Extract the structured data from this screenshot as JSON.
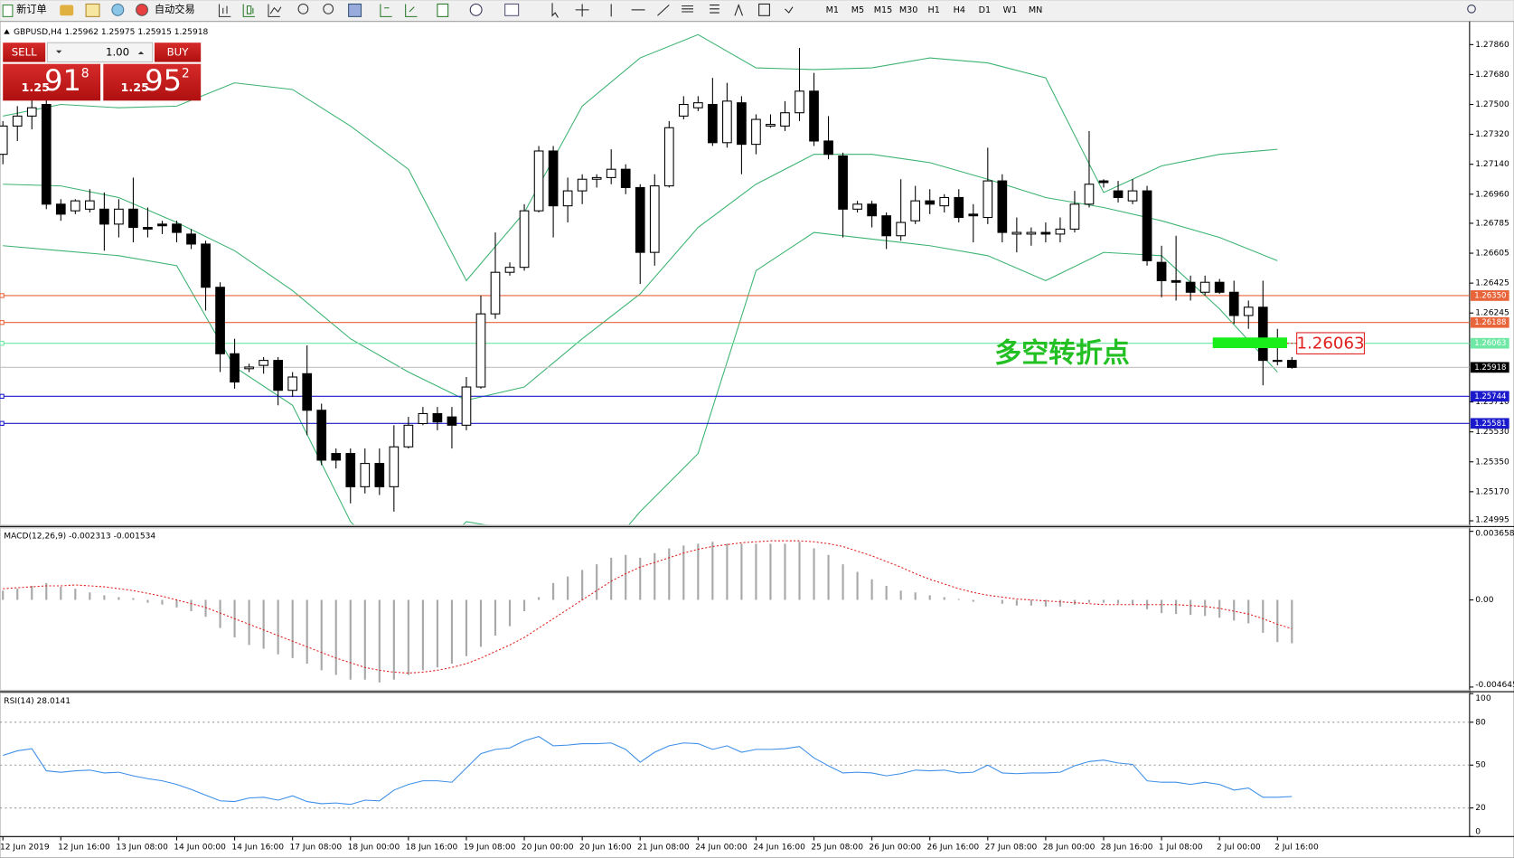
{
  "toolbar": {
    "new_order": "新订单",
    "auto_trading": "自动交易",
    "timeframes": [
      "M1",
      "M5",
      "M15",
      "M30",
      "H1",
      "H4",
      "D1",
      "W1",
      "MN"
    ]
  },
  "trade_panel": {
    "sell": "SELL",
    "buy": "BUY",
    "lot": "1.00",
    "sell_price": {
      "big": "1.25",
      "pips": "91",
      "point": "8"
    },
    "buy_price": {
      "big": "1.25",
      "pips": "95",
      "point": "2"
    }
  },
  "chart_data": [
    {
      "type": "candlestick",
      "label": "GBPUSD,H4  1.25962 1.25975 1.25915 1.25918",
      "categories": [
        "12 Jun 2019",
        null,
        null,
        null,
        "12 Jun 16:00",
        null,
        null,
        null,
        "13 Jun 08:00",
        null,
        null,
        null,
        "14 Jun 00:00",
        null,
        null,
        null,
        "14 Jun 16:00",
        null,
        null,
        null,
        "17 Jun 08:00",
        null,
        null,
        null,
        "18 Jun 00:00",
        null,
        null,
        null,
        "18 Jun 16:00",
        null,
        null,
        null,
        "19 Jun 08:00",
        null,
        null,
        null,
        "20 Jun 00:00",
        null,
        null,
        null,
        "20 Jun 16:00",
        null,
        null,
        null,
        "21 Jun 08:00",
        null,
        null,
        null,
        "24 Jun 00:00",
        null,
        null,
        null,
        "24 Jun 16:00",
        null,
        null,
        null,
        "25 Jun 08:00",
        null,
        null,
        null,
        "26 Jun 00:00",
        null,
        null,
        null,
        "26 Jun 16:00",
        null,
        null,
        null,
        "27 Jun 08:00",
        null,
        null,
        null,
        "28 Jun 00:00",
        null,
        null,
        null,
        "28 Jun 16:00",
        null,
        null,
        null,
        "1 Jul 08:00",
        null,
        null,
        null,
        "2 Jul 00:00",
        null,
        null,
        null,
        "2 Jul 16:00",
        null
      ],
      "ohlc": [
        [
          1.272,
          1.274,
          1.2714,
          1.2737
        ],
        [
          1.2737,
          1.2749,
          1.2728,
          1.2743
        ],
        [
          1.2743,
          1.2755,
          1.2735,
          1.2748
        ],
        [
          1.275,
          1.2755,
          1.2687,
          1.269
        ],
        [
          1.269,
          1.2693,
          1.268,
          1.2684
        ],
        [
          1.2686,
          1.2693,
          1.2684,
          1.2692
        ],
        [
          1.2687,
          1.2699,
          1.2685,
          1.2692
        ],
        [
          1.2687,
          1.2697,
          1.2662,
          1.2678
        ],
        [
          1.2678,
          1.2693,
          1.267,
          1.2687
        ],
        [
          1.2687,
          1.2706,
          1.2667,
          1.2676
        ],
        [
          1.2676,
          1.2688,
          1.267,
          1.2675
        ],
        [
          1.2678,
          1.268,
          1.2672,
          1.2677
        ],
        [
          1.2678,
          1.268,
          1.2667,
          1.2673
        ],
        [
          1.2672,
          1.2675,
          1.2663,
          1.2666
        ],
        [
          1.2666,
          1.2668,
          1.2626,
          1.264
        ],
        [
          1.264,
          1.2643,
          1.2589,
          1.26
        ],
        [
          1.26,
          1.2609,
          1.2579,
          1.2583
        ],
        [
          1.2591,
          1.2594,
          1.2589,
          1.2592
        ],
        [
          1.2593,
          1.2598,
          1.2588,
          1.2596
        ],
        [
          1.2596,
          1.2598,
          1.2569,
          1.2578
        ],
        [
          1.2578,
          1.2589,
          1.2574,
          1.2586
        ],
        [
          1.2588,
          1.2605,
          1.2551,
          1.2566
        ],
        [
          1.2566,
          1.257,
          1.2533,
          1.2536
        ],
        [
          1.254,
          1.2543,
          1.2531,
          1.2536
        ],
        [
          1.254,
          1.2543,
          1.251,
          1.252
        ],
        [
          1.252,
          1.2543,
          1.2516,
          1.2534
        ],
        [
          1.2534,
          1.2543,
          1.2515,
          1.252
        ],
        [
          1.252,
          1.2557,
          1.2505,
          1.2544
        ],
        [
          1.2544,
          1.2562,
          1.2543,
          1.2557
        ],
        [
          1.2558,
          1.2568,
          1.2557,
          1.2564
        ],
        [
          1.2564,
          1.2568,
          1.2554,
          1.2559
        ],
        [
          1.2562,
          1.2568,
          1.2543,
          1.2557
        ],
        [
          1.2557,
          1.2586,
          1.2554,
          1.258
        ],
        [
          1.258,
          1.2635,
          1.2579,
          1.2624
        ],
        [
          1.2624,
          1.2673,
          1.2621,
          1.2649
        ],
        [
          1.2649,
          1.2655,
          1.2647,
          1.2652
        ],
        [
          1.2652,
          1.269,
          1.265,
          1.2686
        ],
        [
          1.2686,
          1.2725,
          1.2685,
          1.2722
        ],
        [
          1.2722,
          1.2725,
          1.267,
          1.2689
        ],
        [
          1.2689,
          1.2706,
          1.2679,
          1.2698
        ],
        [
          1.2698,
          1.2708,
          1.269,
          1.2705
        ],
        [
          1.2705,
          1.2708,
          1.27,
          1.2706
        ],
        [
          1.2706,
          1.2723,
          1.2702,
          1.2711
        ],
        [
          1.2711,
          1.2714,
          1.2696,
          1.27
        ],
        [
          1.27,
          1.2702,
          1.2642,
          1.2661
        ],
        [
          1.2661,
          1.2708,
          1.2653,
          1.2701
        ],
        [
          1.2701,
          1.274,
          1.27,
          1.2736
        ],
        [
          1.2743,
          1.2755,
          1.2741,
          1.275
        ],
        [
          1.2748,
          1.2755,
          1.2746,
          1.2751
        ],
        [
          1.275,
          1.2766,
          1.2725,
          1.2727
        ],
        [
          1.2727,
          1.2763,
          1.2724,
          1.2752
        ],
        [
          1.2751,
          1.2755,
          1.2708,
          1.2726
        ],
        [
          1.2726,
          1.2744,
          1.272,
          1.2741
        ],
        [
          1.2737,
          1.2744,
          1.2736,
          1.2738
        ],
        [
          1.2737,
          1.2752,
          1.2734,
          1.2745
        ],
        [
          1.2745,
          1.2784,
          1.274,
          1.2758
        ],
        [
          1.2758,
          1.2769,
          1.2725,
          1.2728
        ],
        [
          1.2728,
          1.2743,
          1.2717,
          1.272
        ],
        [
          1.2719,
          1.2721,
          1.267,
          1.2687
        ],
        [
          1.2687,
          1.2692,
          1.2685,
          1.269
        ],
        [
          1.269,
          1.2692,
          1.2676,
          1.2683
        ],
        [
          1.2683,
          1.2685,
          1.2663,
          1.2671
        ],
        [
          1.2671,
          1.2705,
          1.2668,
          1.2679
        ],
        [
          1.268,
          1.2701,
          1.2678,
          1.2692
        ],
        [
          1.2692,
          1.2699,
          1.2684,
          1.269
        ],
        [
          1.2689,
          1.2696,
          1.2685,
          1.2694
        ],
        [
          1.2694,
          1.2699,
          1.2679,
          1.2682
        ],
        [
          1.2684,
          1.269,
          1.2667,
          1.2683
        ],
        [
          1.2682,
          1.2724,
          1.2678,
          1.2704
        ],
        [
          1.2704,
          1.2708,
          1.2667,
          1.2673
        ],
        [
          1.2672,
          1.2682,
          1.2661,
          1.2673
        ],
        [
          1.2672,
          1.2676,
          1.2665,
          1.2673
        ],
        [
          1.2673,
          1.2679,
          1.2667,
          1.2672
        ],
        [
          1.2672,
          1.2682,
          1.2667,
          1.2675
        ],
        [
          1.2675,
          1.2698,
          1.2673,
          1.269
        ],
        [
          1.269,
          1.2734,
          1.2688,
          1.2702
        ],
        [
          1.2704,
          1.2705,
          1.27,
          1.2703
        ],
        [
          1.2698,
          1.2704,
          1.2691,
          1.2694
        ],
        [
          1.2692,
          1.2705,
          1.269,
          1.2698
        ],
        [
          1.2698,
          1.2701,
          1.2653,
          1.2656
        ],
        [
          1.2655,
          1.2665,
          1.2634,
          1.2644
        ],
        [
          1.2644,
          1.2671,
          1.2632,
          1.2643
        ],
        [
          1.2643,
          1.2647,
          1.2632,
          1.2637
        ],
        [
          1.2637,
          1.2647,
          1.2635,
          1.2643
        ],
        [
          1.2643,
          1.2645,
          1.2636,
          1.2637
        ],
        [
          1.2637,
          1.2644,
          1.2618,
          1.2623
        ],
        [
          1.2623,
          1.2632,
          1.2615,
          1.2628
        ],
        [
          1.2628,
          1.2644,
          1.2581,
          1.2596
        ],
        [
          1.2596,
          1.2615,
          1.2593,
          1.2596
        ],
        [
          1.2596,
          1.2598,
          1.2591,
          1.25918
        ]
      ],
      "band_x": [
        0,
        4,
        8,
        12,
        16,
        20,
        24,
        28,
        32,
        36,
        40,
        44,
        48,
        52,
        56,
        60,
        64,
        68,
        72,
        76,
        80,
        84,
        88
      ],
      "bands": [
        {
          "color": "#3cb371",
          "values": [
            1.2743,
            1.275,
            1.2748,
            1.2749,
            1.2763,
            1.2759,
            1.2737,
            1.2711,
            1.2644,
            1.2685,
            1.2749,
            1.2778,
            1.2792,
            1.2772,
            1.2771,
            1.2772,
            1.2778,
            1.2775,
            1.2766,
            1.2697,
            1.2713,
            1.272,
            1.2723
          ]
        },
        {
          "color": "#3cb371",
          "values": [
            1.2702,
            1.2701,
            1.2694,
            1.2679,
            1.2662,
            1.2638,
            1.2609,
            1.2589,
            1.2572,
            1.258,
            1.2609,
            1.2636,
            1.2676,
            1.2702,
            1.272,
            1.272,
            1.2715,
            1.2705,
            1.2694,
            1.2688,
            1.268,
            1.267,
            1.2656
          ]
        },
        {
          "color": "#3cb371",
          "values": [
            1.2665,
            1.2662,
            1.2659,
            1.2653,
            1.2592,
            1.2569,
            1.2499,
            1.2464,
            1.2499,
            1.2493,
            1.2464,
            1.2505,
            1.254,
            1.265,
            1.2673,
            1.2669,
            1.2665,
            1.2659,
            1.2644,
            1.2661,
            1.2659,
            1.2627,
            1.2589
          ]
        }
      ],
      "ylim": [
        1.24972,
        1.27982
      ],
      "yticks": [
        {
          "value": 1.2786,
          "label": "1.27860"
        },
        {
          "value": 1.2768,
          "label": "1.27680"
        },
        {
          "value": 1.275,
          "label": "1.27500"
        },
        {
          "value": 1.2732,
          "label": "1.27320"
        },
        {
          "value": 1.2714,
          "label": "1.27140"
        },
        {
          "value": 1.2696,
          "label": "1.26960"
        },
        1.26785,
        1.26605,
        1.26425,
        1.26245,
        {
          "value": 1.2571,
          "label": "1.25710"
        },
        {
          "value": 1.2553,
          "label": "1.25530"
        },
        {
          "value": 1.2535,
          "label": "1.25350"
        },
        {
          "value": 1.2517,
          "label": "1.25170"
        },
        1.24995
      ],
      "hlines": [
        {
          "value": 1.2635,
          "label": "1.26350",
          "color": "#e8643a"
        },
        {
          "value": 1.26188,
          "label": "1.26188",
          "color": "#e8643a"
        },
        {
          "value": 1.26063,
          "label": "1.26063",
          "color": "#6ee8a4"
        },
        {
          "value": 1.25744,
          "label": "1.25744",
          "color": "#1a1acc"
        },
        {
          "value": 1.25581,
          "label": "1.25581",
          "color": "#1a1acc"
        }
      ],
      "bid": {
        "value": 1.25918,
        "label": "1.25918"
      },
      "annotation": {
        "text": "多空转折点",
        "label": "1.26063"
      }
    },
    {
      "type": "macd",
      "label": "MACD(12,26,9) -0.002313 -0.001534",
      "histogram": [
        0.0005,
        0.0006,
        0.00075,
        0.0009,
        0.0007,
        0.0006,
        0.0004,
        0.00025,
        0.00015,
        0.0001,
        -0.00015,
        -0.00025,
        -0.0004,
        -0.0006,
        -0.0009,
        -0.0015,
        -0.002,
        -0.0024,
        -0.0026,
        -0.0029,
        -0.0031,
        -0.0034,
        -0.00375,
        -0.004,
        -0.00425,
        -0.00425,
        -0.0044,
        -0.00425,
        -0.004,
        -0.00375,
        -0.0036,
        -0.0034,
        -0.003,
        -0.0025,
        -0.0019,
        -0.0014,
        -0.0006,
        0.00015,
        0.0009,
        0.00125,
        0.0016,
        0.0019,
        0.00225,
        0.0024,
        0.00225,
        0.0025,
        0.00275,
        0.0029,
        0.003,
        0.0031,
        0.003,
        0.003,
        0.003,
        0.003,
        0.003,
        0.0031,
        0.00275,
        0.0024,
        0.0019,
        0.0015,
        0.0011,
        0.00075,
        0.0005,
        0.0004,
        0.00025,
        0.00015,
        5e-05,
        -0.0001,
        0,
        -0.0002,
        -0.0003,
        -0.0003,
        -0.00035,
        -0.00035,
        -0.00025,
        -0.00015,
        -0.00015,
        -0.0002,
        -0.00025,
        -0.0005,
        -0.0007,
        -0.00075,
        -0.0008,
        -0.00085,
        -0.00095,
        -0.0011,
        -0.00125,
        -0.00175,
        -0.00225,
        -0.002313
      ],
      "signal": [
        0.0006,
        0.00065,
        0.0007,
        0.00075,
        0.00075,
        0.0008,
        0.00075,
        0.0007,
        0.0006,
        0.0005,
        0.00035,
        0.0002,
        0,
        -0.0002,
        -0.0004,
        -0.0007,
        -0.001,
        -0.0013,
        -0.0016,
        -0.0019,
        -0.0022,
        -0.0025,
        -0.0028,
        -0.0031,
        -0.00335,
        -0.0036,
        -0.00375,
        -0.00385,
        -0.0039,
        -0.00385,
        -0.00375,
        -0.0036,
        -0.0034,
        -0.0031,
        -0.00275,
        -0.0024,
        -0.002,
        -0.0015,
        -0.001,
        -0.0005,
        0,
        0.0005,
        0.001,
        0.0014,
        0.00175,
        0.002,
        0.00225,
        0.0025,
        0.0027,
        0.00285,
        0.00295,
        0.00305,
        0.0031,
        0.00315,
        0.00315,
        0.00315,
        0.0031,
        0.003,
        0.00285,
        0.0026,
        0.00235,
        0.00205,
        0.00175,
        0.0014,
        0.0011,
        0.00085,
        0.0006,
        0.0004,
        0.00025,
        0.00015,
        5e-05,
        0,
        -5e-05,
        -0.0001,
        -0.00015,
        -0.0002,
        -0.00025,
        -0.00025,
        -0.00025,
        -0.00025,
        -0.00025,
        -0.00025,
        -0.0003,
        -0.00035,
        -0.00045,
        -0.0006,
        -0.00075,
        -0.001,
        -0.0013,
        -0.001534
      ],
      "histogram_color": "#a8a8a8",
      "signal_color": "#e02020",
      "ylim": [
        -0.00479,
        0.00381
      ],
      "yticks": [
        0.003658,
        {
          "value": 0,
          "label": "0.00"
        },
        -0.004645
      ]
    },
    {
      "type": "line",
      "label": "RSI(14) 28.0141",
      "color": "#3d8fe8",
      "values": [
        56.8,
        60,
        61.5,
        46,
        45,
        46,
        46.5,
        44.5,
        45,
        42.5,
        40.5,
        39,
        36.5,
        33,
        29,
        25,
        24.5,
        27,
        27.5,
        25.5,
        28.5,
        24.5,
        23,
        23.5,
        22.5,
        25.5,
        25,
        32.5,
        36.5,
        39,
        39,
        38,
        48,
        58,
        61,
        62,
        67,
        70,
        63.5,
        64,
        65,
        65,
        65.5,
        61,
        52,
        59,
        63.5,
        65.5,
        65,
        61,
        63.5,
        59,
        61,
        61,
        61.5,
        63,
        55,
        49.5,
        44.5,
        45,
        44.5,
        42.5,
        44,
        46.5,
        46,
        46.5,
        44.5,
        45,
        50,
        44.5,
        44,
        44.5,
        44.5,
        45,
        49.5,
        52.5,
        53.5,
        51.5,
        50.5,
        39,
        38,
        38,
        36.5,
        38,
        36.5,
        32.5,
        34,
        27.5,
        27.5,
        28.0141
      ],
      "ylim": [
        0,
        100
      ],
      "yticks": [
        0,
        20,
        50,
        80,
        100
      ]
    }
  ]
}
